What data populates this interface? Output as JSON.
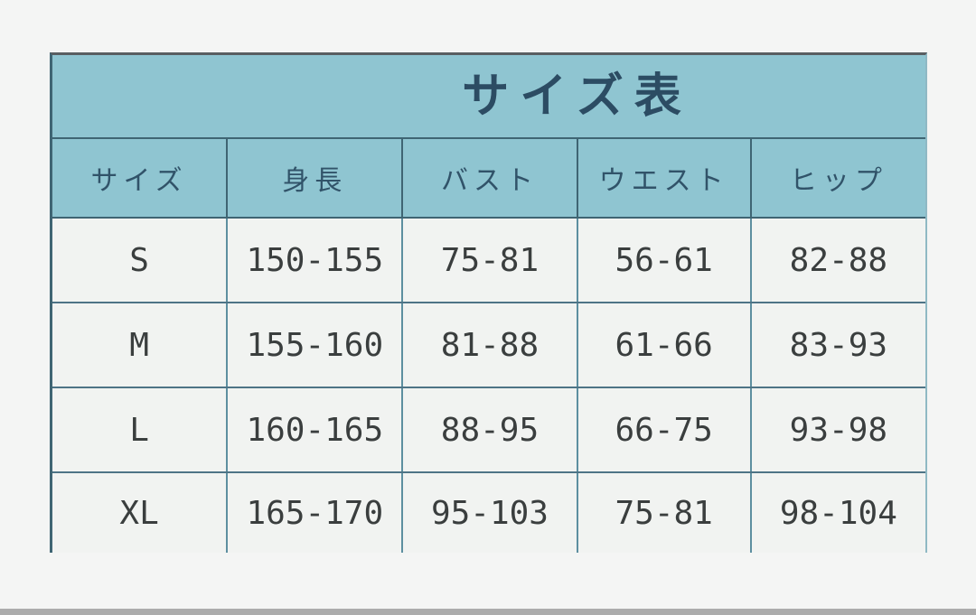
{
  "page": {
    "background_color": "#f4f5f4",
    "bottom_bar_color": "#acacac"
  },
  "size_chart": {
    "title": "サイズ表",
    "columns": [
      "サイズ",
      "身長",
      "バスト",
      "ウエスト",
      "ヒップ"
    ],
    "rows": [
      [
        "S",
        "150-155",
        "75-81",
        "56-61",
        "82-88"
      ],
      [
        "M",
        "155-160",
        "81-88",
        "61-66",
        "83-93"
      ],
      [
        "L",
        "160-165",
        "88-95",
        "66-75",
        "93-98"
      ],
      [
        "XL",
        "165-170",
        "95-103",
        "75-81",
        "98-104"
      ]
    ],
    "colors": {
      "header_bg": "#8fc5d1",
      "title_text": "#2c4c63",
      "header_text": "#315369",
      "body_bg": "#f1f3f1",
      "body_text": "#3a3e3e",
      "border_dark": "#3f6573",
      "border_teal": "#5d8fa0"
    }
  },
  "chart_data": {
    "type": "table",
    "title": "サイズ表",
    "columns": [
      "サイズ",
      "身長",
      "バスト",
      "ウエスト",
      "ヒップ"
    ],
    "rows": [
      [
        "S",
        "150-155",
        "75-81",
        "56-61",
        "82-88"
      ],
      [
        "M",
        "155-160",
        "81-88",
        "61-66",
        "83-93"
      ],
      [
        "L",
        "160-165",
        "88-95",
        "66-75",
        "93-98"
      ],
      [
        "XL",
        "165-170",
        "95-103",
        "75-81",
        "98-104"
      ]
    ]
  }
}
